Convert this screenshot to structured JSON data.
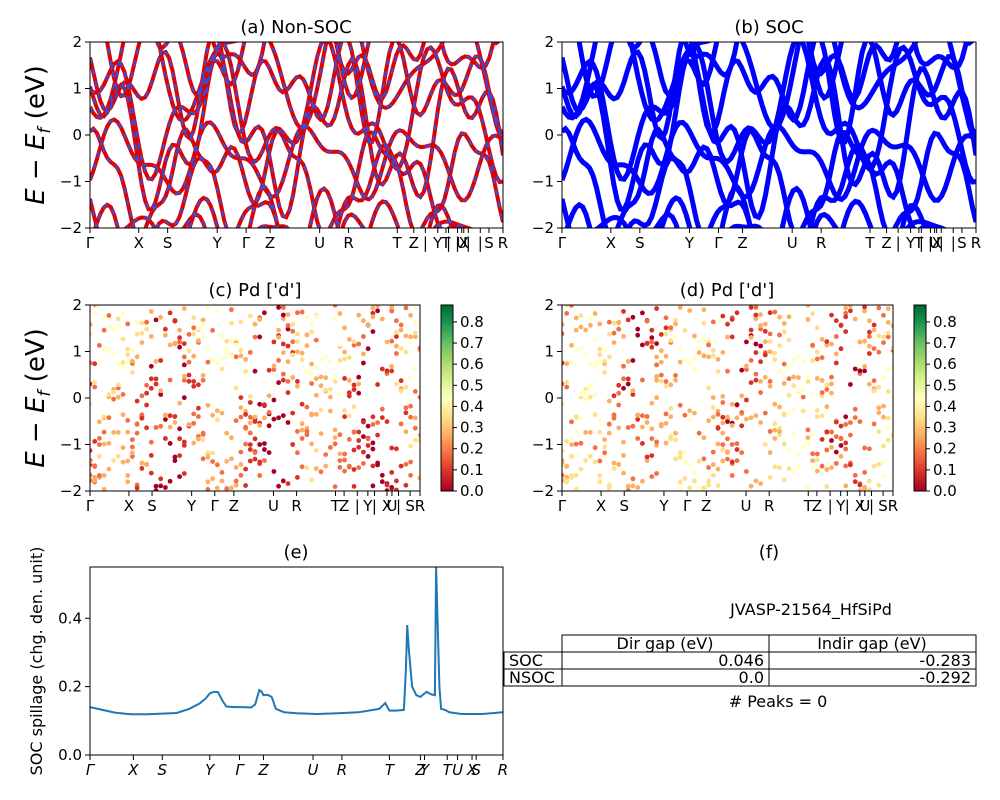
{
  "chart_data": [
    {
      "id": "a",
      "type": "line",
      "title": "(a) Non-SOC",
      "ylabel": "E − E_f (eV)",
      "ylim": [
        -2,
        2
      ],
      "yticks": [
        "2",
        "1",
        "0",
        "−1",
        "−2"
      ],
      "xticks": [
        "Γ",
        "X",
        "S",
        "Y",
        "Γ",
        "Z",
        "U",
        "R",
        "T",
        "Z",
        "|",
        "Y",
        "|",
        "T",
        "|",
        "U",
        "|",
        "X",
        "|",
        "S",
        "R"
      ],
      "xtick_pos": [
        0,
        0.118,
        0.188,
        0.308,
        0.378,
        0.436,
        0.556,
        0.626,
        0.744,
        0.784,
        0.812,
        0.842,
        0.868,
        0.862,
        0.89,
        0.9,
        0.916,
        0.905,
        0.945,
        0.966,
        1.0
      ],
      "series": [
        {
          "color": "#e00000",
          "width": 4
        },
        {
          "color": "#3050e0",
          "width": 2,
          "dash": "6,6"
        }
      ]
    },
    {
      "id": "b",
      "type": "line",
      "title": "(b) SOC",
      "ylim": [
        -2,
        2
      ],
      "yticks": [
        "2",
        "1",
        "0",
        "−1",
        "−2"
      ],
      "xticks": [
        "Γ",
        "X",
        "S",
        "Y",
        "Γ",
        "Z",
        "U",
        "R",
        "T",
        "Z",
        "|",
        "Y",
        "|",
        "T",
        "|",
        "U",
        "|",
        "X",
        "|",
        "S",
        "R"
      ],
      "xtick_pos": [
        0,
        0.118,
        0.188,
        0.308,
        0.378,
        0.436,
        0.556,
        0.626,
        0.744,
        0.784,
        0.812,
        0.842,
        0.868,
        0.862,
        0.89,
        0.9,
        0.916,
        0.905,
        0.945,
        0.966,
        1.0
      ],
      "series": [
        {
          "color": "#0000ff",
          "width": 5
        }
      ]
    },
    {
      "id": "c",
      "type": "scatter",
      "title": "(c)  Pd ['d']",
      "ylabel": "E − E_f (eV)",
      "ylim": [
        -2,
        2
      ],
      "yticks": [
        "2",
        "1",
        "0",
        "−1",
        "−2"
      ],
      "xticks": [
        "Γ",
        "X",
        "S",
        "Y",
        "Γ",
        "Z",
        "U",
        "R",
        "T",
        "Z",
        "|",
        "Y",
        "|",
        "X",
        "U",
        "|",
        "S",
        "R"
      ],
      "xtick_pos": [
        0,
        0.118,
        0.188,
        0.308,
        0.378,
        0.436,
        0.556,
        0.626,
        0.744,
        0.77,
        0.81,
        0.842,
        0.862,
        0.9,
        0.915,
        0.935,
        0.97,
        1.0
      ],
      "colorbar": {
        "colormap": "RdYlGn",
        "min": 0.0,
        "max": 0.88,
        "ticks": [
          "0.0",
          "0.1",
          "0.2",
          "0.3",
          "0.4",
          "0.5",
          "0.6",
          "0.7",
          "0.8"
        ]
      }
    },
    {
      "id": "d",
      "type": "scatter",
      "title": "(d) Pd ['d']",
      "ylim": [
        -2,
        2
      ],
      "yticks": [
        "2",
        "1",
        "0",
        "−1",
        "−2"
      ],
      "xticks": [
        "Γ",
        "X",
        "S",
        "Y",
        "Γ",
        "Z",
        "U",
        "R",
        "T",
        "Z",
        "|",
        "Y",
        "|",
        "X",
        "U",
        "|",
        "S",
        "R"
      ],
      "xtick_pos": [
        0,
        0.118,
        0.188,
        0.308,
        0.378,
        0.436,
        0.556,
        0.626,
        0.744,
        0.77,
        0.81,
        0.842,
        0.862,
        0.9,
        0.915,
        0.935,
        0.97,
        1.0
      ],
      "colorbar": {
        "colormap": "RdYlGn",
        "min": 0.0,
        "max": 0.88,
        "ticks": [
          "0.0",
          "0.1",
          "0.2",
          "0.3",
          "0.4",
          "0.5",
          "0.6",
          "0.7",
          "0.8"
        ]
      }
    },
    {
      "id": "e",
      "type": "line",
      "title": "(e)",
      "ylabel": "SOC spillage (chg. den. unit)",
      "ylim": [
        0,
        0.55
      ],
      "yticks": [
        {
          "v": 0.4,
          "label": "0.4"
        },
        {
          "v": 0.2,
          "label": "0.2"
        },
        {
          "v": 0.0,
          "label": "0.0"
        }
      ],
      "xticks": [
        "Γ",
        "X",
        "S",
        "Y",
        "Γ",
        "Z",
        "U",
        "R",
        "T",
        "Z",
        "Y",
        "T",
        "U",
        "X",
        "S",
        "R"
      ],
      "xtick_pos": [
        0,
        0.105,
        0.175,
        0.29,
        0.362,
        0.42,
        0.54,
        0.61,
        0.725,
        0.8,
        0.81,
        0.865,
        0.89,
        0.925,
        0.935,
        1.0
      ],
      "series": [
        {
          "color": "#1f77b4",
          "x": [
            0,
            0.03,
            0.06,
            0.1,
            0.14,
            0.175,
            0.21,
            0.24,
            0.265,
            0.28,
            0.29,
            0.3,
            0.31,
            0.32,
            0.33,
            0.35,
            0.37,
            0.39,
            0.4,
            0.41,
            0.415,
            0.42,
            0.43,
            0.44,
            0.45,
            0.47,
            0.5,
            0.55,
            0.6,
            0.65,
            0.7,
            0.715,
            0.72,
            0.725,
            0.74,
            0.76,
            0.765,
            0.768,
            0.772,
            0.78,
            0.79,
            0.8,
            0.81,
            0.815,
            0.825,
            0.835,
            0.838,
            0.842,
            0.846,
            0.85,
            0.86,
            0.87,
            0.9,
            0.95,
            1.0
          ],
          "y": [
            0.14,
            0.132,
            0.124,
            0.119,
            0.119,
            0.121,
            0.123,
            0.135,
            0.15,
            0.165,
            0.18,
            0.185,
            0.184,
            0.16,
            0.142,
            0.14,
            0.14,
            0.139,
            0.148,
            0.19,
            0.186,
            0.175,
            0.176,
            0.17,
            0.135,
            0.125,
            0.122,
            0.12,
            0.122,
            0.125,
            0.135,
            0.152,
            0.14,
            0.13,
            0.13,
            0.132,
            0.25,
            0.38,
            0.31,
            0.2,
            0.175,
            0.17,
            0.18,
            0.185,
            0.178,
            0.175,
            0.55,
            0.38,
            0.2,
            0.135,
            0.132,
            0.125,
            0.12,
            0.12,
            0.125
          ]
        }
      ]
    },
    {
      "id": "f",
      "type": "table",
      "title": "(f)",
      "subtitle": "JVASP-21564_HfSiPd",
      "columns": [
        "",
        "Dir gap (eV)",
        "Indir gap (eV)"
      ],
      "rows": [
        [
          "SOC",
          "0.046",
          "-0.283"
        ],
        [
          "NSOC",
          "0.0",
          "-0.292"
        ]
      ],
      "footer": "# Peaks = 0"
    }
  ]
}
